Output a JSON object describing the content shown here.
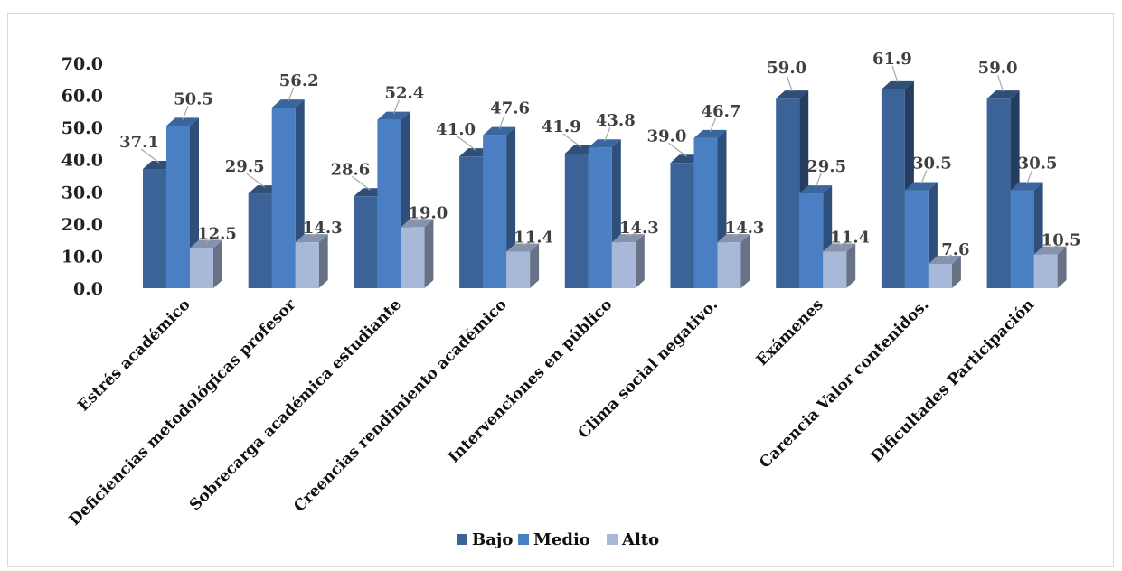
{
  "chart_data": {
    "type": "bar",
    "categories": [
      "Estrés académico",
      "Deficiencias metodológicas profesor",
      "Sobrecarga académica estudiante",
      "Creencias rendimiento académico",
      "Intervenciones en público",
      "Clima social negativo.",
      "Exámenes",
      "Carencia Valor contenidos.",
      "Dificultades Participación"
    ],
    "series": [
      {
        "name": "Bajo",
        "color": "#3b6397",
        "values": [
          37.1,
          29.5,
          28.6,
          41.0,
          41.9,
          39.0,
          59.0,
          61.9,
          59.0
        ]
      },
      {
        "name": "Medio",
        "color": "#4a7fc4",
        "values": [
          50.5,
          56.2,
          52.4,
          47.6,
          43.8,
          46.7,
          29.5,
          30.5,
          30.5
        ]
      },
      {
        "name": "Alto",
        "color": "#a8b8d8",
        "values": [
          12.5,
          14.3,
          19.0,
          11.4,
          14.3,
          14.3,
          11.4,
          7.6,
          10.5
        ]
      }
    ],
    "value_labels": [
      [
        "37.1",
        "29.5",
        "28.6",
        "41.0",
        "41.9",
        "39.0",
        "59.0",
        "61.9",
        "59.0"
      ],
      [
        "50.5",
        "56.2",
        "52.4",
        "47.6",
        "43.8",
        "46.7",
        "29.5",
        "30.5",
        "30.5"
      ],
      [
        "12.5",
        "14.3",
        "19.0",
        "11.4",
        "14.3",
        "14.3",
        "11.4",
        "7.6",
        "10.5"
      ]
    ],
    "yticks": [
      "0.0",
      "10.0",
      "20.0",
      "30.0",
      "40.0",
      "50.0",
      "60.0",
      "70.0"
    ],
    "ylim": [
      0,
      70
    ],
    "title": "",
    "xlabel": "",
    "ylabel": "",
    "grid": false,
    "three_d": true,
    "legend_position": "bottom"
  }
}
